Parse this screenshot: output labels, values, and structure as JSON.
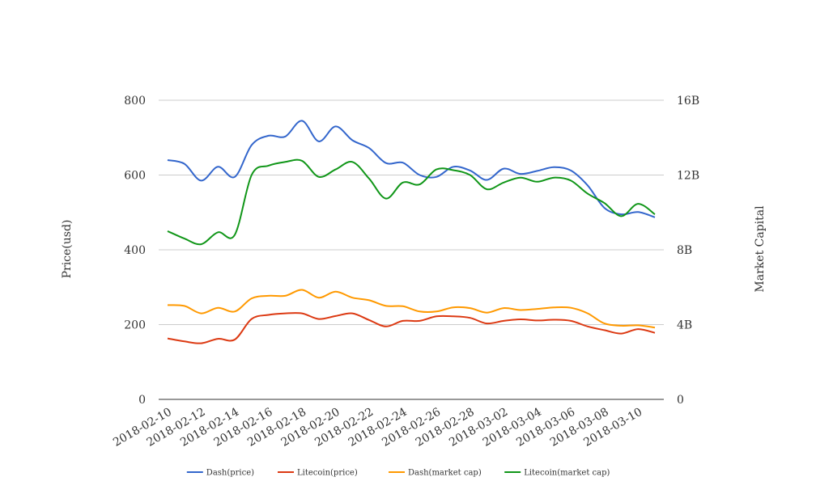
{
  "chart_data": {
    "type": "line",
    "title": "",
    "y_left_label": "Price(usd)",
    "y_right_label": "Market Capital",
    "y_left_range": [
      0,
      800
    ],
    "y_right_range": [
      0,
      16000000000
    ],
    "y_left_ticks": [
      "0",
      "200",
      "400",
      "600",
      "800"
    ],
    "y_right_ticks": [
      "0",
      "4B",
      "8B",
      "12B",
      "16B"
    ],
    "grid": true,
    "legend_position": "bottom",
    "x": [
      "2018-02-10",
      "2018-02-11",
      "2018-02-12",
      "2018-02-13",
      "2018-02-14",
      "2018-02-15",
      "2018-02-16",
      "2018-02-17",
      "2018-02-18",
      "2018-02-19",
      "2018-02-20",
      "2018-02-21",
      "2018-02-22",
      "2018-02-23",
      "2018-02-24",
      "2018-02-25",
      "2018-02-26",
      "2018-02-27",
      "2018-02-28",
      "2018-03-01",
      "2018-03-02",
      "2018-03-03",
      "2018-03-04",
      "2018-03-05",
      "2018-03-06",
      "2018-03-07",
      "2018-03-08",
      "2018-03-09",
      "2018-03-10",
      "2018-03-11"
    ],
    "x_tick_labels": [
      "2018-02-10",
      "2018-02-12",
      "2018-02-14",
      "2018-02-16",
      "2018-02-18",
      "2018-02-20",
      "2018-02-22",
      "2018-02-24",
      "2018-02-26",
      "2018-02-28",
      "2018-03-02",
      "2018-03-04",
      "2018-03-06",
      "2018-03-08",
      "2018-03-10"
    ],
    "series": [
      {
        "name": "Dash(price)",
        "axis": "left",
        "color": "#3366cc",
        "values": [
          640,
          630,
          585,
          622,
          595,
          680,
          705,
          703,
          745,
          690,
          730,
          693,
          672,
          632,
          633,
          600,
          595,
          622,
          612,
          587,
          617,
          603,
          611,
          621,
          612,
          572,
          512,
          495,
          501,
          487
        ]
      },
      {
        "name": "Litecoin(price)",
        "axis": "left",
        "color": "#dc3912",
        "values": [
          163,
          155,
          150,
          162,
          160,
          215,
          226,
          230,
          230,
          215,
          223,
          230,
          212,
          195,
          210,
          210,
          222,
          222,
          218,
          203,
          210,
          214,
          211,
          213,
          210,
          195,
          185,
          176,
          188,
          178
        ]
      },
      {
        "name": "Dash(market cap)",
        "axis": "right",
        "color": "#ff9900",
        "values": [
          5040000000,
          5000000000,
          4600000000,
          4900000000,
          4700000000,
          5400000000,
          5540000000,
          5540000000,
          5860000000,
          5440000000,
          5760000000,
          5440000000,
          5300000000,
          5000000000,
          4980000000,
          4700000000,
          4700000000,
          4920000000,
          4880000000,
          4640000000,
          4880000000,
          4780000000,
          4840000000,
          4920000000,
          4900000000,
          4600000000,
          4060000000,
          3940000000,
          3960000000,
          3840000000
        ]
      },
      {
        "name": "Litecoin(market cap)",
        "axis": "right",
        "color": "#109618",
        "values": [
          9000000000,
          8600000000,
          8300000000,
          8940000000,
          8800000000,
          12000000000,
          12500000000,
          12700000000,
          12760000000,
          11900000000,
          12300000000,
          12700000000,
          11800000000,
          10740000000,
          11600000000,
          11500000000,
          12300000000,
          12260000000,
          12000000000,
          11240000000,
          11600000000,
          11860000000,
          11640000000,
          11860000000,
          11700000000,
          11000000000,
          10500000000,
          9800000000,
          10460000000,
          9900000000
        ]
      }
    ]
  }
}
